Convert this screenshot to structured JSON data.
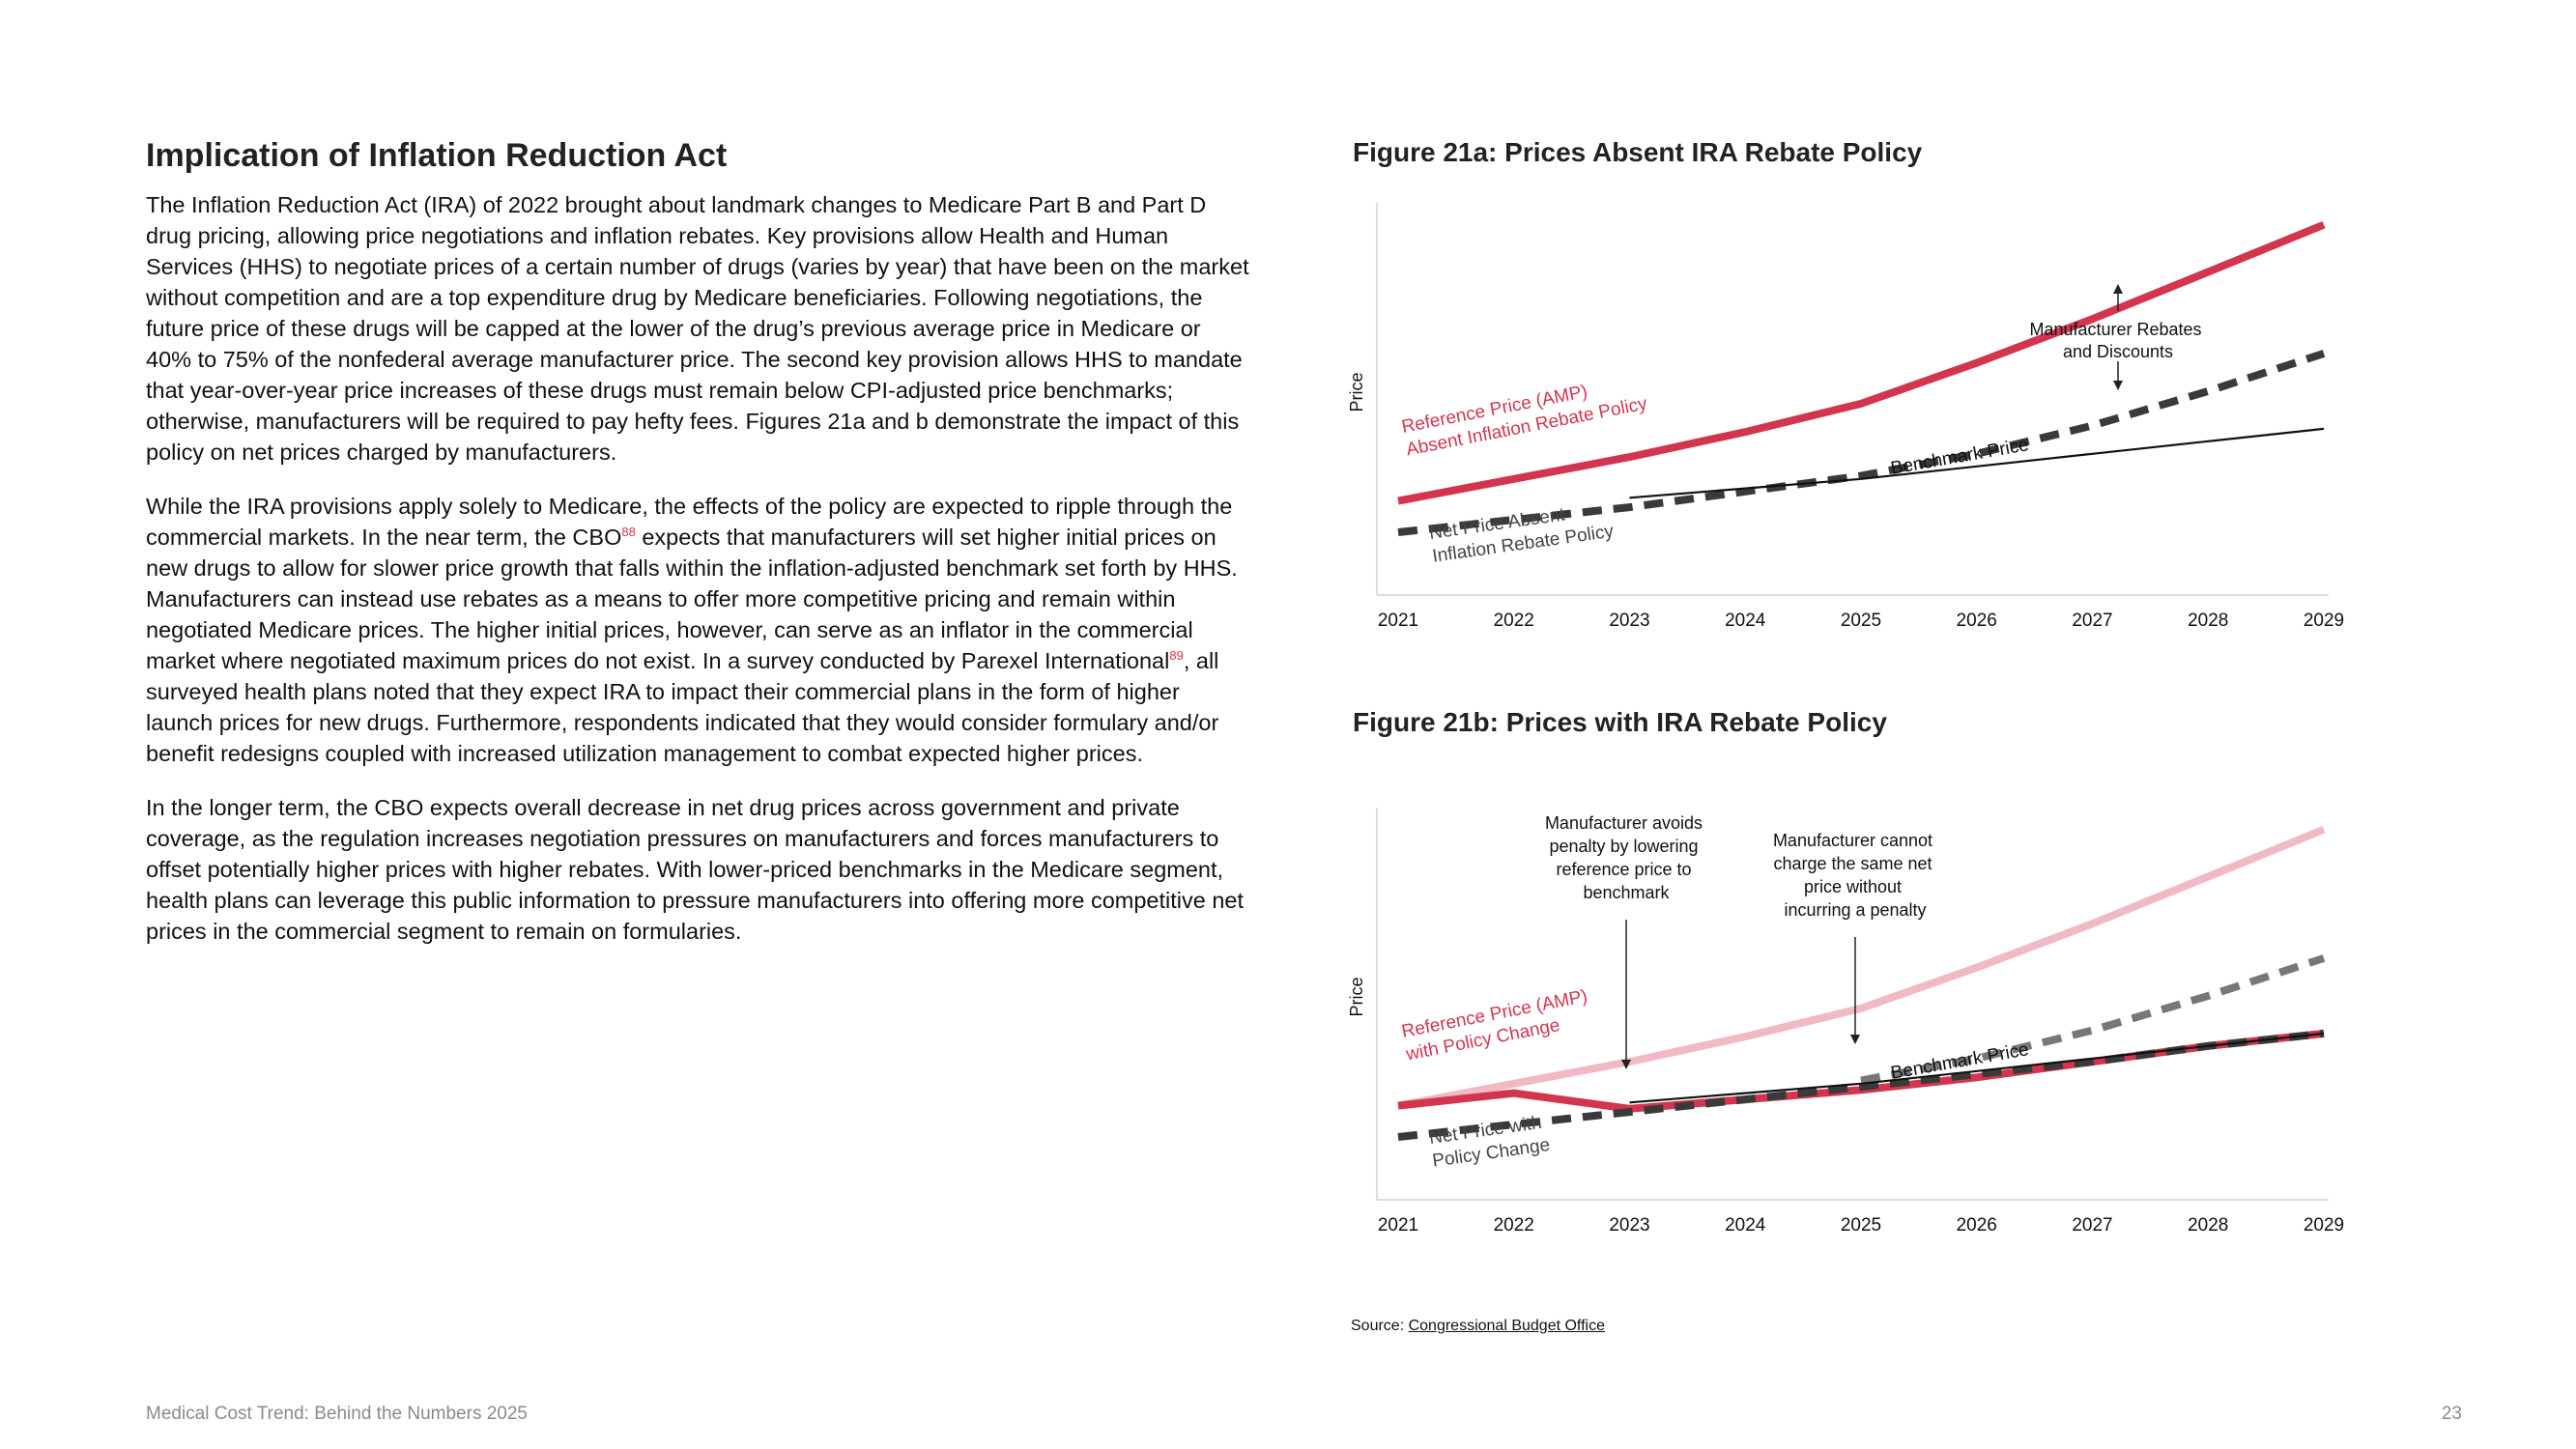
{
  "heading": "Implication of Inflation Reduction Act",
  "paragraphs": {
    "p1": "The Inflation Reduction Act (IRA) of 2022 brought about landmark changes to Medicare Part B and Part D drug pricing, allowing price negotiations and inflation rebates. Key provisions allow Health and Human Services (HHS) to negotiate prices of a certain number of drugs (varies by year) that have been on the market without competition and are a top expenditure drug by Medicare beneficiaries. Following negotiations, the future price of these drugs will be capped at the lower of the drug’s previous average price in Medicare or 40% to 75% of the nonfederal average manufacturer price. The second key provision allows HHS to mandate that year-over-year price increases of these drugs must remain below CPI-adjusted price benchmarks; otherwise, manufacturers will be required to pay hefty fees. Figures 21a and b demonstrate the impact of this policy on net prices charged by manufacturers.",
    "p2_a": "While the IRA provisions apply solely to Medicare, the effects of the policy are expected to ripple through the commercial markets. In the near term, the CBO",
    "p2_ref1": "88",
    "p2_b": " expects that manufacturers will set higher initial prices on new drugs to allow for slower price growth that falls within the inflation-adjusted benchmark set forth by HHS. Manufacturers can instead use rebates as a means to offer more competitive pricing and remain within negotiated Medicare prices. The higher initial prices, however, can serve as an inflator in the commercial market where negotiated maximum prices do not exist. In a survey conducted by Parexel International",
    "p2_ref2": "89",
    "p2_c": ", all surveyed health plans noted that they expect IRA to impact their commercial plans in the form of higher launch prices for new drugs. Furthermore, respondents indicated that they would consider formulary and/or benefit redesigns coupled with increased utilization management to combat expected higher prices.",
    "p3": "In the longer term, the CBO expects overall decrease in net drug prices across government and private coverage, as the regulation increases negotiation pressures on manufacturers and forces manufacturers to offset potentially higher prices with higher rebates. With lower-priced benchmarks in the Medicare segment, health plans can leverage this public information to pressure manufacturers into offering more competitive net prices in the commercial segment to remain on formularies."
  },
  "colors": {
    "accent": "#d3354f",
    "accent_light": "#f0b9c3",
    "dark": "#3a3a3a",
    "grey": "#777777"
  },
  "chart_data": [
    {
      "type": "line",
      "title": "Figure 21a: Prices Absent IRA Rebate Policy",
      "ylabel": "Price",
      "x": [
        "2021",
        "2022",
        "2023",
        "2024",
        "2025",
        "2026",
        "2027",
        "2028",
        "2029"
      ],
      "grid": false,
      "series": [
        {
          "name": "Reference Price (AMP) Absent Inflation Rebate Policy",
          "values": [
            30,
            37,
            44,
            52,
            61,
            74,
            88,
            103,
            118
          ],
          "color": "#d3354f",
          "style": "solid"
        },
        {
          "name": "Net Price Absent Inflation Rebate Policy",
          "values": [
            20,
            24,
            28,
            33,
            38,
            45,
            54,
            65,
            77
          ],
          "color": "#3a3a3a",
          "style": "dashed"
        },
        {
          "name": "Benchmark Price",
          "values": [
            null,
            null,
            31,
            34,
            37,
            41,
            45,
            49,
            53
          ],
          "color": "#111111",
          "style": "thin"
        }
      ],
      "annotations": {
        "rebates": "Manufacturer Rebates and Discounts"
      }
    },
    {
      "type": "line",
      "title": "Figure 21b: Prices with IRA Rebate Policy",
      "ylabel": "Price",
      "x": [
        "2021",
        "2022",
        "2023",
        "2024",
        "2025",
        "2026",
        "2027",
        "2028",
        "2029"
      ],
      "grid": false,
      "series": [
        {
          "name": "Reference Price (AMP) with Policy Change",
          "values": [
            30,
            37,
            44,
            52,
            61,
            74,
            88,
            103,
            118
          ],
          "color": "#f0b9c3",
          "style": "solid"
        },
        {
          "name": "Reference Price (AMP) with Policy Change",
          "values": [
            30,
            34,
            29,
            32,
            35,
            39,
            44,
            49,
            53
          ],
          "color": "#d3354f",
          "style": "solid"
        },
        {
          "name": "Net Price with Policy Change",
          "values": [
            20,
            24,
            28,
            32,
            36,
            40,
            44,
            49,
            53
          ],
          "color": "#3a3a3a",
          "style": "dashed"
        },
        {
          "name": "Net Price with Policy Change",
          "values": [
            null,
            null,
            null,
            null,
            38,
            45,
            54,
            65,
            77
          ],
          "color": "#777777",
          "style": "dashed"
        },
        {
          "name": "Benchmark Price",
          "values": [
            null,
            null,
            31,
            34,
            37,
            41,
            45,
            49,
            53
          ],
          "color": "#111111",
          "style": "thin"
        }
      ],
      "annotations": {
        "avoids": "Manufacturer avoids penalty by lowering reference price to benchmark",
        "cannot": "Manufacturer cannot charge the same net price without incurring a penalty"
      }
    }
  ],
  "labels_a": {
    "ref_line1": "Reference Price (AMP)",
    "ref_line2": "Absent Inflation Rebate Policy",
    "net_line1": "Net Price Absent",
    "net_line2": "Inflation Rebate Policy",
    "bench": "Benchmark Price",
    "reb_line1": "Manufacturer Rebates",
    "reb_line2": "and Discounts"
  },
  "labels_b": {
    "ref_line1": "Reference Price (AMP)",
    "ref_line2": "with Policy Change",
    "net_line1": "Net Price with",
    "net_line2": "Policy Change",
    "bench": "Benchmark Price",
    "avoid_lines": [
      "Manufacturer avoids",
      "penalty by lowering",
      "reference price to",
      "benchmark"
    ],
    "cannot_lines": [
      "Manufacturer cannot",
      "charge the same net",
      "price without",
      "incurring a penalty"
    ]
  },
  "source": {
    "prefix": "Source: ",
    "link": "Congressional Budget Office"
  },
  "footer": {
    "left": "Medical Cost Trend: Behind the Numbers 2025",
    "page": "23"
  }
}
